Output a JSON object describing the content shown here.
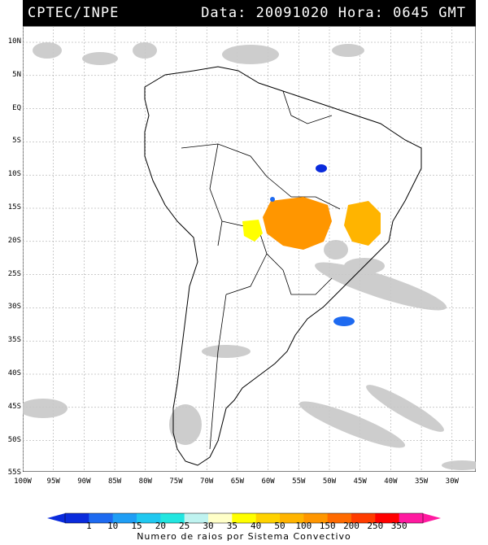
{
  "header": {
    "source": "CPTEC/INPE",
    "datetime": "Data: 20091020 Hora: 0645 GMT"
  },
  "lat_labels": [
    "10N",
    "5N",
    "EQ",
    "5S",
    "10S",
    "15S",
    "20S",
    "25S",
    "30S",
    "35S",
    "40S",
    "45S",
    "50S",
    "55S"
  ],
  "lon_labels": [
    "100W",
    "95W",
    "90W",
    "85W",
    "80W",
    "75W",
    "70W",
    "65W",
    "60W",
    "55W",
    "50W",
    "45W",
    "40W",
    "35W",
    "30W"
  ],
  "colorbar": {
    "ticks": [
      "1",
      "10",
      "15",
      "20",
      "25",
      "30",
      "35",
      "40",
      "50",
      "100",
      "150",
      "200",
      "250",
      "350"
    ],
    "colors": [
      "#0a2bdc",
      "#1e6af0",
      "#1f9ef5",
      "#20c8f0",
      "#22e6e0",
      "#bff3f0",
      "#ffffc8",
      "#ffff00",
      "#ffd200",
      "#ffb400",
      "#ff9600",
      "#ff6a00",
      "#ff3c00",
      "#ff0000",
      "#ff1aa0"
    ],
    "title": "Numero de raios por Sistema Convectivo"
  }
}
